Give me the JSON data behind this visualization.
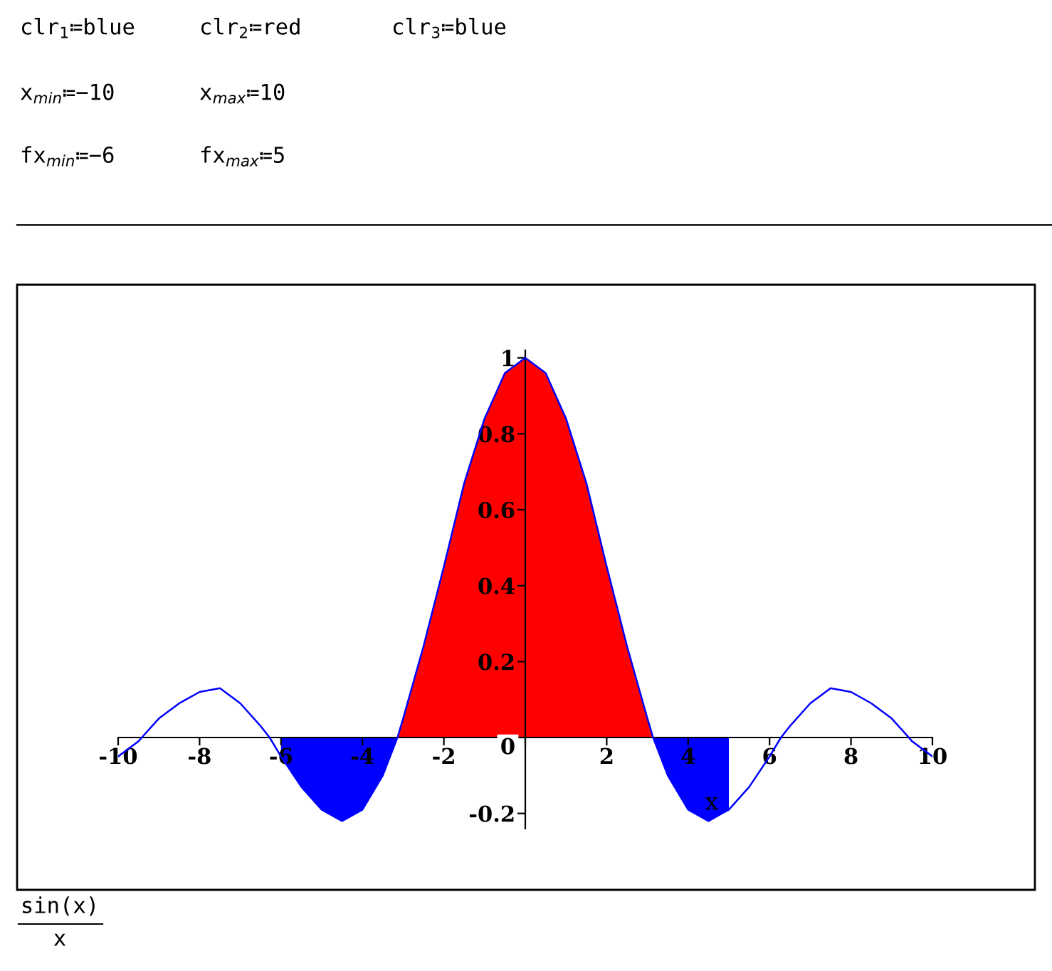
{
  "chart_data": {
    "type": "line",
    "xlabel": "x",
    "annotations": [
      "clr$_{1}$≔blue",
      "clr$_{2}$≔red",
      "clr$_{3}$≔blue",
      "x$_{min}$≔−10",
      "x$_{max}$≔10",
      "fx$_{min}$≔−6",
      "fx$_{max}$≔5",
      "sin(x)",
      "x"
    ],
    "series": [
      {
        "type": "area",
        "color": "#0000ff",
        "x": [
          -6,
          -5.5,
          -5,
          -4.5,
          -4,
          -3.5,
          -3.14
        ],
        "values": [
          -0.05,
          -0.13,
          -0.19,
          -0.22,
          -0.19,
          -0.1,
          0
        ]
      },
      {
        "type": "area",
        "color": "#ff0000",
        "x": [
          -3.14,
          -3,
          -2.5,
          -2,
          -1.5,
          -1,
          -0.5,
          0,
          0.5,
          1,
          1.5,
          2,
          2.5,
          3,
          3.14
        ],
        "values": [
          0,
          0.05,
          0.24,
          0.45,
          0.67,
          0.84,
          0.96,
          1,
          0.96,
          0.84,
          0.67,
          0.45,
          0.24,
          0.05,
          0
        ]
      },
      {
        "type": "area",
        "color": "#0000ff",
        "x": [
          3.14,
          3.5,
          4,
          4.5,
          5
        ],
        "values": [
          0,
          -0.1,
          -0.19,
          -0.22,
          -0.19
        ]
      },
      {
        "type": "line",
        "color": "#0000ff",
        "x": [
          -10,
          -9.5,
          -9.42,
          -9,
          -8.5,
          -8,
          -7.5,
          -7,
          -6.5,
          -6.28,
          -6,
          -5.5,
          -5,
          -4.5,
          -4,
          -3.5,
          -3.14,
          -3,
          -2.5,
          -2,
          -1.5,
          -1,
          -0.5,
          0,
          0.5,
          1,
          1.5,
          2,
          2.5,
          3,
          3.14,
          3.5,
          4,
          4.5,
          5,
          5.5,
          6,
          6.28,
          6.5,
          7,
          7.5,
          8,
          8.5,
          9,
          9.42,
          9.5,
          10
        ],
        "values": [
          -0.05,
          -0.01,
          0,
          0.05,
          0.09,
          0.12,
          0.13,
          0.09,
          0.03,
          0,
          -0.05,
          -0.13,
          -0.19,
          -0.22,
          -0.19,
          -0.1,
          0,
          0.05,
          0.24,
          0.45,
          0.67,
          0.84,
          0.96,
          1,
          0.96,
          0.84,
          0.67,
          0.45,
          0.24,
          0.05,
          0,
          -0.1,
          -0.19,
          -0.22,
          -0.19,
          -0.13,
          -0.05,
          0,
          0.03,
          0.09,
          0.13,
          0.12,
          0.09,
          0.05,
          0,
          -0.01,
          -0.05
        ]
      }
    ],
    "xlim": [
      -10,
      10
    ],
    "xticks": [
      -10,
      -8,
      -6,
      -4,
      -2,
      {
        "value": 0,
        "label": null
      },
      2,
      4,
      6,
      8,
      10
    ],
    "ylim": [
      -0.24,
      1.02
    ],
    "yticks": [
      -0.2,
      0,
      0.2,
      0.4,
      0.6,
      0.8,
      1
    ],
    "line_style": "solid",
    "marker": "none",
    "grid": false,
    "legend": false
  }
}
